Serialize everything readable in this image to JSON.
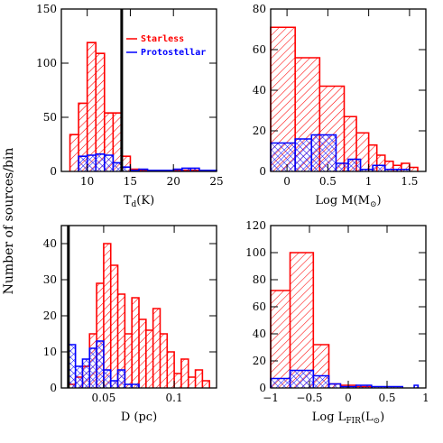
{
  "figure": {
    "ylabel": "Number of sources/bin",
    "colors": {
      "starless": "#ff0000",
      "protostellar": "#0000ff",
      "axis": "#000000"
    }
  },
  "chart_data": [
    {
      "type": "histogram",
      "id": "td",
      "xlabel_main": "T",
      "xlabel_sub": "d",
      "xlabel_tail": "(K)",
      "xlim": [
        7,
        25
      ],
      "ylim": [
        0,
        150
      ],
      "xticks": [
        10,
        15,
        20,
        25
      ],
      "yticks": [
        0,
        50,
        100,
        150
      ],
      "ytick_labels": [
        "0",
        "50",
        "100",
        "150"
      ],
      "vline": 14,
      "legend": [
        {
          "name": "Starless",
          "color": "#ff0000"
        },
        {
          "name": "Protostellar",
          "color": "#0000ff"
        }
      ],
      "series": [
        {
          "name": "Starless",
          "bins": [
            [
              8,
              9,
              34
            ],
            [
              9,
              10,
              63
            ],
            [
              10,
              11,
              119
            ],
            [
              11,
              12,
              109
            ],
            [
              12,
              13,
              54
            ],
            [
              13,
              14,
              54
            ],
            [
              14,
              15,
              14
            ],
            [
              15,
              16,
              2
            ],
            [
              16,
              17,
              1
            ],
            [
              17,
              18,
              1
            ],
            [
              18,
              19,
              1
            ],
            [
              19,
              20,
              1
            ],
            [
              20,
              21,
              1
            ],
            [
              21,
              22,
              1
            ],
            [
              22,
              23,
              1
            ],
            [
              23,
              24,
              1
            ]
          ]
        },
        {
          "name": "Protostellar",
          "bins": [
            [
              9,
              10,
              14
            ],
            [
              10,
              11,
              15
            ],
            [
              11,
              12,
              16
            ],
            [
              12,
              13,
              15
            ],
            [
              13,
              14,
              8
            ],
            [
              14,
              15,
              4
            ],
            [
              15,
              16,
              1
            ],
            [
              16,
              17,
              2
            ],
            [
              17,
              18,
              1
            ],
            [
              18,
              19,
              1
            ],
            [
              19,
              20,
              1
            ],
            [
              20,
              21,
              2
            ],
            [
              21,
              22,
              3
            ],
            [
              22,
              23,
              3
            ],
            [
              23,
              24,
              1
            ],
            [
              24,
              25,
              1
            ]
          ]
        }
      ]
    },
    {
      "type": "histogram",
      "id": "mass",
      "xlabel_main": "Log M(M",
      "xlabel_sub": "⊙",
      "xlabel_tail": ")",
      "xlim": [
        -0.2,
        1.7
      ],
      "ylim": [
        0,
        80
      ],
      "xticks": [
        0,
        0.5,
        1,
        1.5
      ],
      "xtick_labels": [
        "0",
        "0.5",
        "1",
        "1.5"
      ],
      "yticks": [
        0,
        20,
        40,
        60,
        80
      ],
      "ytick_labels": [
        "0",
        "20",
        "40",
        "60",
        "80"
      ],
      "series": [
        {
          "name": "Starless",
          "bins": [
            [
              -0.2,
              0.1,
              71
            ],
            [
              0.1,
              0.4,
              56
            ],
            [
              0.4,
              0.7,
              42
            ],
            [
              0.7,
              0.85,
              27
            ],
            [
              0.85,
              1,
              19
            ],
            [
              1,
              1.1,
              13
            ],
            [
              1.1,
              1.2,
              8
            ],
            [
              1.2,
              1.3,
              5
            ],
            [
              1.3,
              1.4,
              3
            ],
            [
              1.4,
              1.5,
              4
            ],
            [
              1.5,
              1.6,
              2
            ]
          ]
        },
        {
          "name": "Protostellar",
          "bins": [
            [
              -0.2,
              0.1,
              14
            ],
            [
              0.1,
              0.3,
              16
            ],
            [
              0.3,
              0.6,
              18
            ],
            [
              0.6,
              0.75,
              4
            ],
            [
              0.75,
              0.9,
              6
            ],
            [
              0.9,
              1.05,
              1
            ],
            [
              1.05,
              1.2,
              3
            ],
            [
              1.2,
              1.35,
              1
            ],
            [
              1.35,
              1.5,
              1
            ]
          ]
        }
      ]
    },
    {
      "type": "histogram",
      "id": "dist",
      "xlabel_main": "D (pc)",
      "xlim": [
        0.02,
        0.13
      ],
      "ylim": [
        0,
        45
      ],
      "xticks": [
        0.05,
        0.1
      ],
      "xtick_labels": [
        "0.05",
        "0.1"
      ],
      "yticks": [
        0,
        10,
        20,
        30,
        40
      ],
      "ytick_labels": [
        "0",
        "10",
        "20",
        "30",
        "40"
      ],
      "vline": 0.025,
      "series": [
        {
          "name": "Starless",
          "bins": [
            [
              0.025,
              0.03,
              1
            ],
            [
              0.03,
              0.035,
              3
            ],
            [
              0.035,
              0.04,
              6
            ],
            [
              0.04,
              0.045,
              15
            ],
            [
              0.045,
              0.05,
              29
            ],
            [
              0.05,
              0.055,
              40
            ],
            [
              0.055,
              0.06,
              34
            ],
            [
              0.06,
              0.065,
              26
            ],
            [
              0.065,
              0.07,
              15
            ],
            [
              0.07,
              0.075,
              25
            ],
            [
              0.075,
              0.08,
              19
            ],
            [
              0.08,
              0.085,
              16
            ],
            [
              0.085,
              0.09,
              22
            ],
            [
              0.09,
              0.095,
              15
            ],
            [
              0.095,
              0.1,
              10
            ],
            [
              0.1,
              0.105,
              4
            ],
            [
              0.105,
              0.11,
              8
            ],
            [
              0.11,
              0.115,
              3
            ],
            [
              0.115,
              0.12,
              5
            ],
            [
              0.12,
              0.125,
              2
            ]
          ]
        },
        {
          "name": "Protostellar",
          "bins": [
            [
              0.025,
              0.03,
              12
            ],
            [
              0.03,
              0.035,
              6
            ],
            [
              0.035,
              0.04,
              8
            ],
            [
              0.04,
              0.045,
              11
            ],
            [
              0.045,
              0.05,
              13
            ],
            [
              0.05,
              0.055,
              5
            ],
            [
              0.055,
              0.06,
              2
            ],
            [
              0.06,
              0.065,
              5
            ],
            [
              0.065,
              0.07,
              1
            ],
            [
              0.07,
              0.075,
              1
            ]
          ]
        }
      ]
    },
    {
      "type": "histogram",
      "id": "lfir",
      "xlabel_main": "Log L",
      "xlabel_sub": "FIR",
      "xlabel_tail": "(L",
      "xlabel_sub2": "⊙",
      "xlabel_tail2": ")",
      "xlim": [
        -1,
        1
      ],
      "ylim": [
        0,
        120
      ],
      "xticks": [
        -1,
        -0.5,
        0,
        0.5,
        1
      ],
      "xtick_labels": [
        "−1",
        "−0.5",
        "0",
        "0.5",
        "1"
      ],
      "yticks": [
        0,
        20,
        40,
        60,
        80,
        100,
        120
      ],
      "ytick_labels": [
        "0",
        "20",
        "40",
        "60",
        "80",
        "100",
        "120"
      ],
      "series": [
        {
          "name": "Starless",
          "bins": [
            [
              -1,
              -0.75,
              72
            ],
            [
              -0.75,
              -0.45,
              100
            ],
            [
              -0.45,
              -0.25,
              32
            ],
            [
              -0.25,
              -0.1,
              3
            ],
            [
              -0.1,
              0.1,
              2
            ],
            [
              0.1,
              0.3,
              1
            ]
          ]
        },
        {
          "name": "Protostellar",
          "bins": [
            [
              -1,
              -0.75,
              7
            ],
            [
              -0.75,
              -0.45,
              13
            ],
            [
              -0.45,
              -0.25,
              9
            ],
            [
              -0.25,
              -0.1,
              3
            ],
            [
              -0.1,
              0.1,
              1
            ],
            [
              0.1,
              0.3,
              2
            ],
            [
              0.3,
              0.5,
              1
            ],
            [
              0.5,
              0.7,
              1
            ],
            [
              0.85,
              0.9,
              2
            ]
          ]
        }
      ]
    }
  ]
}
